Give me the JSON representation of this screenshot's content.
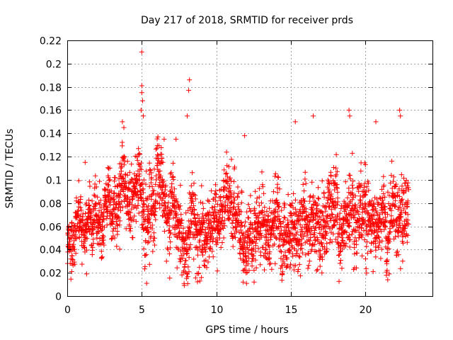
{
  "chart_data": {
    "type": "scatter",
    "title": "Day 217 of 2018, SRMTID for receiver prds",
    "xlabel": "GPS time / hours",
    "ylabel": "SRMTID / TECUs",
    "xlim": [
      0,
      24.5
    ],
    "ylim": [
      0,
      0.22
    ],
    "xticks": [
      0,
      5,
      10,
      15,
      20
    ],
    "xtick_labels": [
      "0",
      "5",
      "10",
      "15",
      "20"
    ],
    "yticks": [
      0,
      0.02,
      0.04,
      0.06,
      0.08,
      0.1,
      0.12,
      0.14,
      0.16,
      0.18,
      0.2,
      0.22
    ],
    "ytick_labels": [
      "0",
      "0.02",
      "0.04",
      "0.06",
      "0.08",
      "0.1",
      "0.12",
      "0.14",
      "0.16",
      "0.18",
      "0.2",
      "0.22"
    ],
    "grid": true,
    "marker": "plus",
    "color": "#ff0000",
    "series_trend": {
      "x": [
        0,
        1,
        2,
        3,
        4,
        5,
        6,
        7,
        8,
        9,
        10,
        11,
        12,
        13,
        14,
        15,
        16,
        17,
        18,
        19,
        20,
        21,
        22,
        23
      ],
      "y": [
        0.048,
        0.058,
        0.062,
        0.068,
        0.088,
        0.095,
        0.085,
        0.075,
        0.058,
        0.048,
        0.058,
        0.062,
        0.055,
        0.06,
        0.064,
        0.068,
        0.072,
        0.075,
        0.068,
        0.076,
        0.074,
        0.062,
        0.07,
        0.066
      ],
      "spread": [
        0.012,
        0.013,
        0.013,
        0.015,
        0.018,
        0.02,
        0.018,
        0.017,
        0.018,
        0.016,
        0.016,
        0.016,
        0.016,
        0.016,
        0.017,
        0.017,
        0.019,
        0.018,
        0.018,
        0.02,
        0.019,
        0.018,
        0.02,
        0.016
      ]
    },
    "x_end": 22.9,
    "n_points": 2750,
    "seed": 217,
    "outliers": [
      {
        "x": 5.0,
        "y": 0.21
      },
      {
        "x": 5.0,
        "y": 0.181
      },
      {
        "x": 5.0,
        "y": 0.175
      },
      {
        "x": 5.05,
        "y": 0.168
      },
      {
        "x": 4.95,
        "y": 0.16
      },
      {
        "x": 5.1,
        "y": 0.155
      },
      {
        "x": 8.2,
        "y": 0.186
      },
      {
        "x": 8.15,
        "y": 0.177
      },
      {
        "x": 8.05,
        "y": 0.155
      },
      {
        "x": 3.7,
        "y": 0.15
      },
      {
        "x": 3.8,
        "y": 0.145
      },
      {
        "x": 18.9,
        "y": 0.16
      },
      {
        "x": 18.95,
        "y": 0.155
      },
      {
        "x": 16.5,
        "y": 0.155
      },
      {
        "x": 15.3,
        "y": 0.15
      },
      {
        "x": 20.7,
        "y": 0.15
      },
      {
        "x": 22.3,
        "y": 0.16
      },
      {
        "x": 22.35,
        "y": 0.155
      },
      {
        "x": 11.9,
        "y": 0.138
      },
      {
        "x": 12.0,
        "y": 0.02
      },
      {
        "x": 8.9,
        "y": 0.013
      },
      {
        "x": 9.0,
        "y": 0.016
      },
      {
        "x": 11.8,
        "y": 0.012
      },
      {
        "x": 21.5,
        "y": 0.014
      },
      {
        "x": 21.6,
        "y": 0.019
      },
      {
        "x": 0.3,
        "y": 0.021
      },
      {
        "x": 1.3,
        "y": 0.019
      },
      {
        "x": 1.2,
        "y": 0.115
      },
      {
        "x": 6.5,
        "y": 0.135
      },
      {
        "x": 7.3,
        "y": 0.135
      }
    ]
  }
}
